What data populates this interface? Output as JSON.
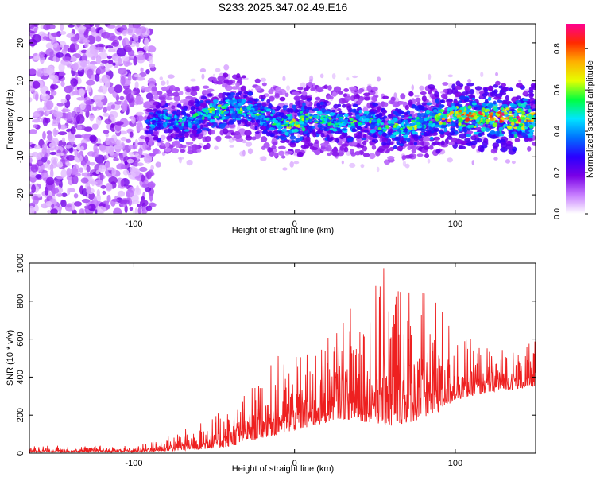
{
  "title": "S233.2025.347.02.49.E16",
  "chart_data": [
    {
      "type": "heatmap",
      "xlabel": "Height of straight line (km)",
      "ylabel": "Frequency (Hz)",
      "xlim": [
        -165,
        150
      ],
      "ylim": [
        -25,
        25
      ],
      "xticks": [
        -100,
        0,
        100
      ],
      "yticks": [
        -20,
        -10,
        0,
        10,
        20
      ],
      "colorbar": {
        "label": "Normalized spectral amplitude",
        "range": [
          0,
          0.92
        ],
        "ticks": [
          "0.0",
          "0.2",
          "0.4",
          "0.6",
          "0.8"
        ],
        "tick_values": [
          0,
          0.2,
          0.4,
          0.6,
          0.8
        ],
        "colors": [
          "#ffffff",
          "#c77dff",
          "#7a00e6",
          "#2a00ff",
          "#0070ff",
          "#00e5ff",
          "#00ff40",
          "#e5ff00",
          "#ffb000",
          "#ff2a00",
          "#ff0090"
        ]
      },
      "noise_region_km": [
        -165,
        -92
      ],
      "signal_track": {
        "x": [
          -92,
          -80,
          -70,
          -60,
          -50,
          -40,
          -30,
          -20,
          -10,
          0,
          10,
          20,
          30,
          40,
          50,
          60,
          70,
          80,
          90,
          100,
          110,
          120,
          130,
          140,
          150
        ],
        "freq": [
          -1.5,
          0,
          -1,
          0.5,
          2,
          3,
          2,
          1,
          -1,
          -1.5,
          0.5,
          -0.5,
          -1,
          -0.5,
          -1,
          -3,
          -2,
          -1,
          0,
          1,
          0.5,
          0.5,
          0.5,
          0,
          0.5
        ],
        "peak_amplitude": [
          0.4,
          0.5,
          0.5,
          0.55,
          0.65,
          0.6,
          0.6,
          0.55,
          0.55,
          0.7,
          0.6,
          0.6,
          0.55,
          0.6,
          0.55,
          0.6,
          0.6,
          0.65,
          0.7,
          0.75,
          0.85,
          0.85,
          0.9,
          0.9,
          0.7
        ]
      }
    },
    {
      "type": "line",
      "xlabel": "Height of straight line (km)",
      "ylabel": "SNR (10 * v/v)",
      "xlim": [
        -165,
        150
      ],
      "ylim": [
        0,
        1000
      ],
      "xticks": [
        -100,
        0,
        100
      ],
      "yticks": [
        0,
        200,
        400,
        600,
        800,
        1000
      ],
      "series": [
        {
          "name": "SNR",
          "color": "#ee2020",
          "envelope_x": [
            -165,
            -100,
            -85,
            -70,
            -60,
            -50,
            -40,
            -30,
            -20,
            -10,
            0,
            10,
            20,
            25,
            30,
            40,
            50,
            55,
            60,
            70,
            80,
            90,
            100,
            110,
            120,
            130,
            140,
            150
          ],
          "envelope_min": [
            5,
            5,
            10,
            15,
            20,
            25,
            35,
            60,
            80,
            100,
            120,
            140,
            160,
            180,
            180,
            170,
            160,
            150,
            140,
            160,
            180,
            220,
            280,
            300,
            320,
            330,
            340,
            350
          ],
          "envelope_max": [
            40,
            40,
            70,
            120,
            160,
            200,
            240,
            330,
            420,
            520,
            500,
            560,
            640,
            720,
            750,
            850,
            900,
            980,
            1000,
            940,
            880,
            820,
            640,
            600,
            560,
            560,
            540,
            600
          ]
        }
      ]
    }
  ]
}
